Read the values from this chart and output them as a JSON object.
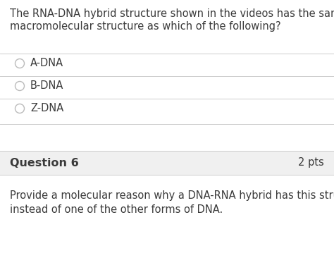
{
  "bg_color": "#ffffff",
  "line_color": "#cccccc",
  "text_color": "#3a3a3a",
  "question_text_line1": "The RNA-DNA hybrid structure shown in the videos has the same",
  "question_text_line2": "macromolecular structure as which of the following?",
  "options": [
    "A-DNA",
    "B-DNA",
    "Z-DNA"
  ],
  "section_label": "Question 6",
  "section_pts": "2 pts",
  "section_bg": "#f0f0f0",
  "followup_line1": "Provide a molecular reason why a DNA-RNA hybrid has this structure",
  "followup_line2": "instead of one of the other forms of DNA.",
  "circle_color": "#bbbbbb",
  "font_size_question": 10.5,
  "font_size_option": 10.5,
  "font_size_section": 11.5,
  "font_size_pts": 10.5,
  "font_size_followup": 10.5
}
